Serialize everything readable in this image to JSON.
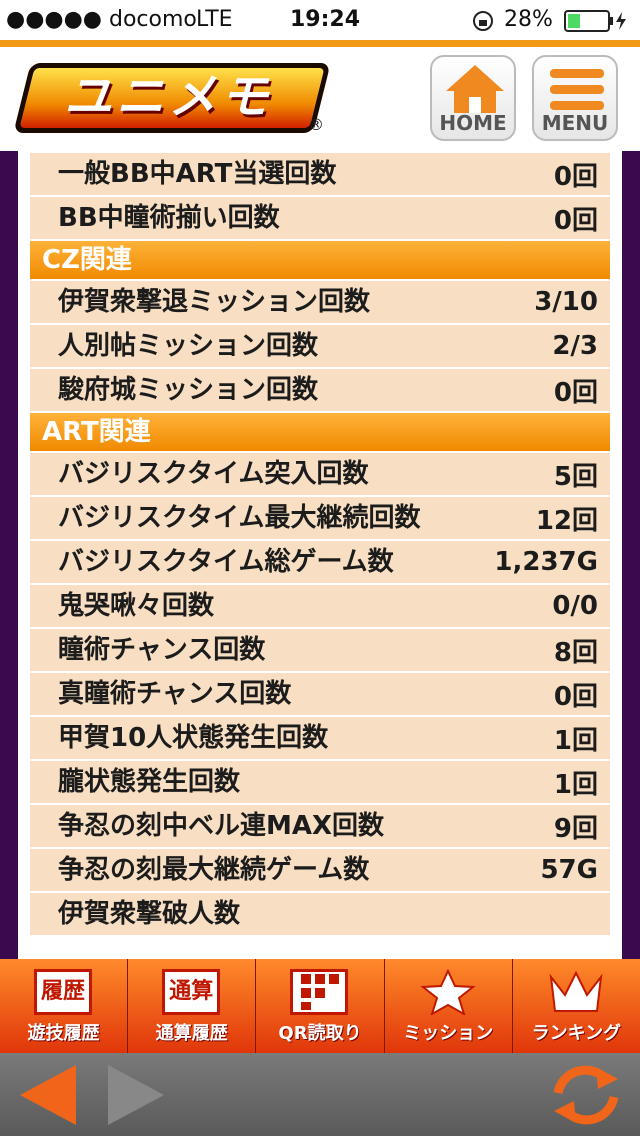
{
  "status_bar": {
    "carrier": "●●●●● docomo",
    "network": "LTE",
    "time": "19:24",
    "battery": "28%"
  },
  "header": {
    "logo": "ユニメモ",
    "logo_mark": "®",
    "buttons": [
      "HOME",
      "MENU"
    ]
  },
  "list": [
    {
      "label": "一般BB中ART当選回数",
      "value": "0回"
    },
    {
      "label": "BB中瞳術揃い回数",
      "value": "0回"
    },
    {
      "section": "CZ関連"
    },
    {
      "label": "伊賀衆撃退ミッション回数",
      "value": "3/10"
    },
    {
      "label": "人別帖ミッション回数",
      "value": "2/3"
    },
    {
      "label": "駿府城ミッション回数",
      "value": "0回"
    },
    {
      "section": "ART関連"
    },
    {
      "label": "バジリスクタイム突入回数",
      "value": "5回"
    },
    {
      "label": "バジリスクタイム最大継続回数",
      "value": "12回"
    },
    {
      "label": "バジリスクタイム総ゲーム数",
      "value": "1,237G"
    },
    {
      "label": "鬼哭啾々回数",
      "value": "0/0"
    },
    {
      "label": "瞳術チャンス回数",
      "value": "8回"
    },
    {
      "label": "真瞳術チャンス回数",
      "value": "0回"
    },
    {
      "label": "甲賀10人状態発生回数",
      "value": "1回"
    },
    {
      "label": "朧状態発生回数",
      "value": "1回"
    },
    {
      "label": "争忍の刻中ベル連MAX回数",
      "value": "9回"
    },
    {
      "label": "争忍の刻最大継続ゲーム数",
      "value": "57G"
    },
    {
      "label": "伊賀衆撃破人数"
    }
  ],
  "tab_bar": [
    {
      "icon": "履歴",
      "label": "遊技履歴"
    },
    {
      "icon": "通算",
      "label": "通算履歴"
    },
    {
      "label": "QR読取り"
    },
    {
      "label": "ミッション"
    },
    {
      "label": "ランキング"
    }
  ]
}
